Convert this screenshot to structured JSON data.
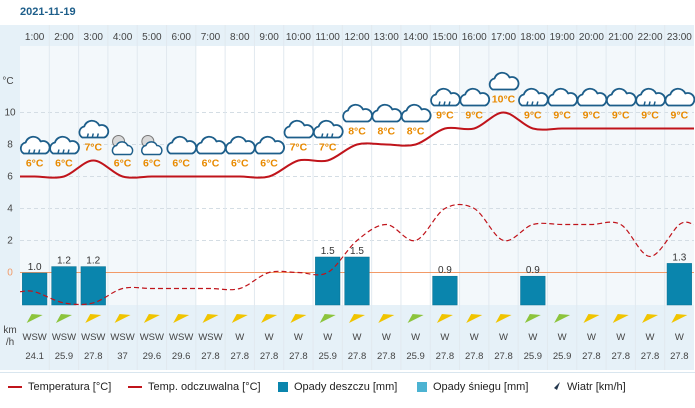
{
  "date": "2021-11-19",
  "units": {
    "temp": "°C",
    "wind": "km\n/h",
    "wind_line1": "km",
    "wind_line2": "/h"
  },
  "colors": {
    "temp": "#c0141b",
    "feel": "#c0141b",
    "rain": "#0a85ad",
    "snow": "#4cb3d2",
    "zero": "#f29a67",
    "temp_label": "#e88a00",
    "grid": "#d4dde4",
    "axis_bg": "#e6f1f8"
  },
  "legend": {
    "temp": "Temperatura [°C]",
    "feel": "Temp. odczuwalna [°C]",
    "rain": "Opady deszczu [mm]",
    "snow": "Opady śniegu [mm]",
    "wind": "Wiatr [km/h]"
  },
  "chart_data": {
    "type": "line",
    "x": [
      "1:00",
      "2:00",
      "3:00",
      "4:00",
      "5:00",
      "6:00",
      "7:00",
      "8:00",
      "9:00",
      "10:00",
      "11:00",
      "12:00",
      "13:00",
      "14:00",
      "15:00",
      "16:00",
      "17:00",
      "18:00",
      "19:00",
      "20:00",
      "21:00",
      "22:00",
      "23:00"
    ],
    "y_ticks": [
      0,
      2,
      4,
      6,
      8,
      10
    ],
    "y_unit": "°C",
    "ylim": [
      -2.1,
      12
    ],
    "grid": true,
    "series": [
      {
        "name": "Temperatura [°C]",
        "values": [
          6,
          6,
          7,
          6,
          6,
          6,
          6,
          6,
          6,
          7,
          7,
          8,
          8,
          8,
          9,
          9,
          10,
          9,
          9,
          9,
          9,
          9,
          9
        ]
      },
      {
        "name": "Temp. odczuwalna [°C]",
        "values": [
          -1.2,
          -1.9,
          -1.9,
          -1,
          -1,
          -1,
          -1,
          -1,
          0,
          0,
          0,
          2,
          3,
          2,
          4,
          4,
          2,
          3,
          3,
          3,
          3,
          1,
          3
        ]
      },
      {
        "name": "Opady deszczu [mm]",
        "values": [
          1.0,
          1.2,
          1.2,
          0,
          0,
          0,
          0,
          0,
          0,
          0,
          1.5,
          1.5,
          0,
          0,
          0.9,
          0,
          0,
          0.9,
          0,
          0,
          0,
          0,
          1.3
        ]
      }
    ],
    "rain_labels": [
      "1.0",
      "1.2",
      "1.2",
      "",
      "",
      "",
      "",
      "",
      "",
      "",
      "1.5",
      "1.5",
      "",
      "",
      "0.9",
      "",
      "",
      "0.9",
      "",
      "",
      "",
      "",
      "1.3"
    ],
    "temp_labels": [
      "6°C",
      "6°C",
      "7°C",
      "6°C",
      "6°C",
      "6°C",
      "6°C",
      "6°C",
      "6°C",
      "7°C",
      "7°C",
      "8°C",
      "8°C",
      "8°C",
      "9°C",
      "9°C",
      "10°C",
      "9°C",
      "9°C",
      "9°C",
      "9°C",
      "9°C",
      "9°C"
    ],
    "icons": [
      "rain-cloud-icon",
      "rain-cloud-icon",
      "rain-cloud-icon",
      "night-partly-cloudy-icon",
      "night-partly-cloudy-icon",
      "cloud-icon",
      "cloud-icon",
      "cloud-icon",
      "cloud-icon",
      "cloud-icon",
      "rain-cloud-icon",
      "cloud-icon",
      "cloud-icon",
      "cloud-icon",
      "rain-cloud-icon",
      "cloud-icon",
      "cloud-icon",
      "rain-cloud-icon",
      "cloud-icon",
      "cloud-icon",
      "cloud-icon",
      "rain-cloud-icon",
      "cloud-icon"
    ],
    "wind_dir": [
      "WSW",
      "WSW",
      "WSW",
      "WSW",
      "WSW",
      "WSW",
      "WSW",
      "W",
      "W",
      "W",
      "W",
      "W",
      "W",
      "W",
      "W",
      "W",
      "W",
      "W",
      "W",
      "W",
      "W",
      "W",
      "W"
    ],
    "wind_speed": [
      "24.1",
      "25.9",
      "27.8",
      "37",
      "29.6",
      "29.6",
      "27.8",
      "27.8",
      "27.8",
      "27.8",
      "25.9",
      "27.8",
      "27.8",
      "25.9",
      "27.8",
      "27.8",
      "27.8",
      "25.9",
      "25.9",
      "27.8",
      "27.8",
      "27.8",
      "27.8"
    ],
    "wind_arrow_color": [
      "#8cc43c",
      "#8cc43c",
      "#f0c400",
      "#f0c400",
      "#f0c400",
      "#f0c400",
      "#f0c400",
      "#f0c400",
      "#f0c400",
      "#f0c400",
      "#8cc43c",
      "#f0c400",
      "#f0c400",
      "#8cc43c",
      "#f0c400",
      "#f0c400",
      "#f0c400",
      "#8cc43c",
      "#8cc43c",
      "#f0c400",
      "#f0c400",
      "#f0c400",
      "#f0c400"
    ]
  }
}
